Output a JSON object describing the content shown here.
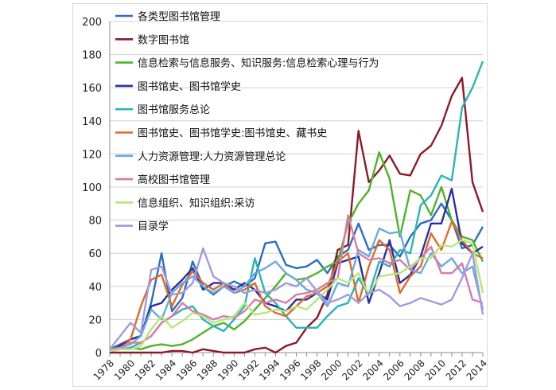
{
  "chart_data": {
    "type": "line",
    "title": "",
    "xlabel": "",
    "ylabel": "",
    "ylim": [
      0,
      200
    ],
    "y_ticks": [
      0,
      20,
      40,
      60,
      80,
      100,
      120,
      140,
      160,
      180,
      200
    ],
    "x": [
      1978,
      1979,
      1980,
      1981,
      1982,
      1983,
      1984,
      1985,
      1986,
      1987,
      1988,
      1989,
      1990,
      1991,
      1992,
      1993,
      1994,
      1995,
      1996,
      1997,
      1998,
      1999,
      2000,
      2001,
      2002,
      2003,
      2004,
      2005,
      2006,
      2007,
      2008,
      2009,
      2010,
      2011,
      2012,
      2013,
      2014
    ],
    "x_tick_labels": [
      "1978",
      "1980",
      "1982",
      "1984",
      "1986",
      "1988",
      "1990",
      "1992",
      "1994",
      "1996",
      "1998",
      "2000",
      "2002",
      "2004",
      "2006",
      "2008",
      "2010",
      "2012",
      "2014"
    ],
    "grid": true,
    "legend_position": "top-left",
    "series": [
      {
        "name": "各类型图书馆管理",
        "color": "#2a6fc0",
        "values": [
          2,
          5,
          8,
          10,
          30,
          60,
          25,
          33,
          55,
          40,
          35,
          40,
          43,
          40,
          45,
          66,
          67,
          53,
          51,
          52,
          56,
          48,
          58,
          62,
          78,
          62,
          65,
          65,
          58,
          70,
          78,
          80,
          90,
          80,
          63,
          65,
          76
        ]
      },
      {
        "name": "数字图书馆",
        "color": "#8b1a2a",
        "values": [
          0,
          0,
          0,
          0,
          0,
          0,
          1,
          1,
          0,
          2,
          1,
          0,
          0,
          0,
          2,
          3,
          0,
          4,
          6,
          15,
          21,
          35,
          62,
          65,
          134,
          103,
          110,
          119,
          108,
          107,
          120,
          125,
          137,
          155,
          166,
          103,
          85
        ]
      },
      {
        "name": "信息检索与信息服务、知识服务:信息检索心理与行为",
        "color": "#4eb329",
        "values": [
          1,
          2,
          3,
          2,
          4,
          5,
          4,
          5,
          8,
          12,
          16,
          18,
          14,
          19,
          26,
          33,
          40,
          48,
          44,
          45,
          48,
          52,
          55,
          78,
          90,
          98,
          121,
          105,
          70,
          98,
          95,
          83,
          100,
          80,
          70,
          68,
          55
        ]
      },
      {
        "name": "图书馆史、图书馆学史",
        "color": "#2a2fa0",
        "values": [
          1,
          4,
          8,
          10,
          28,
          30,
          38,
          44,
          51,
          38,
          42,
          42,
          38,
          42,
          38,
          30,
          28,
          25,
          32,
          32,
          36,
          32,
          54,
          56,
          58,
          30,
          48,
          68,
          42,
          47,
          58,
          78,
          78,
          99,
          66,
          60,
          64
        ]
      },
      {
        "name": "图书馆服务总论",
        "color": "#2ab5b5",
        "values": [
          1,
          2,
          3,
          6,
          10,
          18,
          22,
          26,
          28,
          20,
          16,
          13,
          20,
          28,
          57,
          36,
          30,
          22,
          15,
          15,
          15,
          22,
          28,
          30,
          45,
          35,
          55,
          52,
          62,
          60,
          89,
          95,
          107,
          104,
          148,
          160,
          176
        ]
      },
      {
        "name": "图书馆史、图书馆学史:图书馆史、藏书史",
        "color": "#e06a2a",
        "values": [
          1,
          2,
          8,
          28,
          44,
          47,
          28,
          41,
          49,
          42,
          38,
          42,
          36,
          38,
          42,
          28,
          24,
          22,
          28,
          34,
          36,
          40,
          55,
          60,
          30,
          52,
          68,
          62,
          36,
          46,
          52,
          72,
          62,
          79,
          68,
          60,
          57
        ]
      },
      {
        "name": "人力资源管理:人力资源管理总论",
        "color": "#6aaae0",
        "values": [
          1,
          3,
          5,
          10,
          26,
          20,
          36,
          42,
          46,
          40,
          36,
          40,
          36,
          40,
          48,
          51,
          55,
          48,
          44,
          38,
          36,
          28,
          42,
          40,
          62,
          58,
          75,
          72,
          73,
          50,
          48,
          60,
          52,
          57,
          48,
          52,
          26
        ]
      },
      {
        "name": "高校图书馆管理",
        "color": "#d97aaa",
        "values": [
          2,
          3,
          6,
          6,
          10,
          18,
          22,
          30,
          25,
          23,
          20,
          22,
          21,
          25,
          32,
          30,
          32,
          30,
          35,
          36,
          38,
          42,
          45,
          83,
          60,
          56,
          57,
          54,
          56,
          50,
          57,
          64,
          48,
          48,
          54,
          32,
          30
        ]
      },
      {
        "name": "信息组织、知识组织:采访",
        "color": "#b4e87a",
        "values": [
          1,
          2,
          2,
          4,
          14,
          22,
          15,
          19,
          24,
          22,
          18,
          20,
          22,
          30,
          23,
          24,
          26,
          25,
          28,
          26,
          32,
          38,
          45,
          42,
          48,
          35,
          46,
          47,
          48,
          52,
          57,
          57,
          65,
          64,
          68,
          66,
          36
        ]
      },
      {
        "name": "目录学",
        "color": "#a09be0",
        "values": [
          2,
          10,
          18,
          12,
          50,
          52,
          35,
          36,
          42,
          63,
          46,
          42,
          40,
          36,
          38,
          36,
          38,
          42,
          40,
          45,
          37,
          30,
          32,
          35,
          30,
          36,
          38,
          34,
          28,
          30,
          33,
          31,
          29,
          32,
          45,
          60,
          23
        ]
      }
    ]
  }
}
